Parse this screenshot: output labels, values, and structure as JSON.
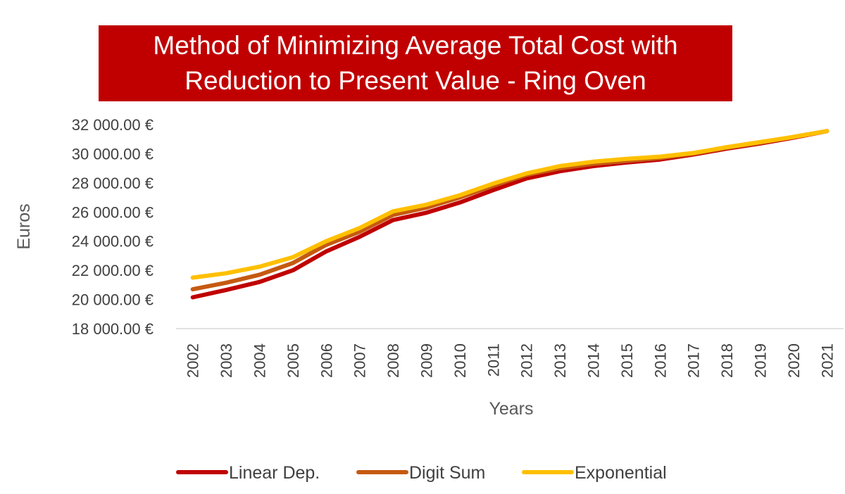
{
  "chart_data": {
    "type": "line",
    "title_lines": [
      "Method of Minimizing Average Total Cost with",
      "Reduction to Present Value - Ring Oven"
    ],
    "xlabel": "Years",
    "ylabel": "Euros",
    "x": [
      "2002",
      "2003",
      "2004",
      "2005",
      "2006",
      "2007",
      "2008",
      "2009",
      "2010",
      "2011",
      "2012",
      "2013",
      "2014",
      "2015",
      "2016",
      "2017",
      "2018",
      "2019",
      "2020",
      "2021"
    ],
    "y_ticks": [
      "32 000.00 €",
      "30 000.00 €",
      "28 000.00 €",
      "26 000.00 €",
      "24 000.00 €",
      "22 000.00 €",
      "20 000.00 €",
      "18 000.00 €"
    ],
    "ylim": [
      18000,
      32000
    ],
    "grid": false,
    "legend_position": "bottom",
    "series": [
      {
        "name": "Linear Dep.",
        "color": "#c00000",
        "values": [
          20150,
          20650,
          21200,
          22000,
          23300,
          24300,
          25450,
          25950,
          26650,
          27500,
          28300,
          28800,
          29150,
          29400,
          29600,
          29950,
          30350,
          30700,
          31100,
          31550
        ]
      },
      {
        "name": "Digit Sum",
        "color": "#c55a11",
        "values": [
          20700,
          21150,
          21700,
          22500,
          23750,
          24650,
          25800,
          26300,
          27000,
          27800,
          28550,
          29000,
          29300,
          29500,
          29700,
          30000,
          30400,
          30750,
          31150,
          31550
        ]
      },
      {
        "name": "Exponential",
        "color": "#ffc000",
        "values": [
          21500,
          21800,
          22250,
          22900,
          24000,
          24900,
          26050,
          26500,
          27150,
          27950,
          28650,
          29150,
          29450,
          29650,
          29800,
          30050,
          30450,
          30800,
          31150,
          31550
        ]
      }
    ]
  }
}
